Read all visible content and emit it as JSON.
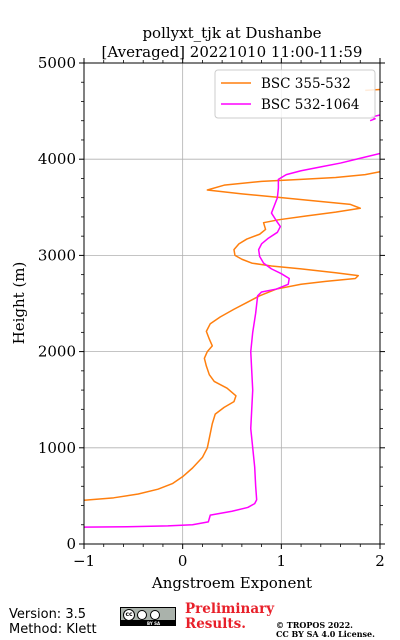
{
  "chart_data": {
    "type": "line",
    "title": [
      "pollyxt_tjk at Dushanbe",
      "[Averaged] 20221010 11:00-11:59"
    ],
    "xlabel": "Angstroem Exponent",
    "ylabel": "Height (m)",
    "xlim": [
      -1,
      2
    ],
    "ylim": [
      0,
      5000
    ],
    "xticks": [
      -1,
      0,
      1,
      2
    ],
    "yticks": [
      0,
      1000,
      2000,
      3000,
      4000,
      5000
    ],
    "grid": true,
    "legend_position": "top-right",
    "series": [
      {
        "name": "BSC 355-532",
        "color": "#ff7f0e",
        "points": [
          [
            -1.0,
            455
          ],
          [
            -0.7,
            480
          ],
          [
            -0.45,
            520
          ],
          [
            -0.25,
            570
          ],
          [
            -0.1,
            630
          ],
          [
            0.0,
            700
          ],
          [
            0.1,
            790
          ],
          [
            0.2,
            900
          ],
          [
            0.25,
            1000
          ],
          [
            0.27,
            1100
          ],
          [
            0.3,
            1250
          ],
          [
            0.33,
            1350
          ],
          [
            0.42,
            1420
          ],
          [
            0.52,
            1480
          ],
          [
            0.54,
            1540
          ],
          [
            0.45,
            1620
          ],
          [
            0.32,
            1690
          ],
          [
            0.27,
            1760
          ],
          [
            0.24,
            1850
          ],
          [
            0.22,
            1930
          ],
          [
            0.25,
            2000
          ],
          [
            0.3,
            2060
          ],
          [
            0.27,
            2130
          ],
          [
            0.24,
            2210
          ],
          [
            0.28,
            2290
          ],
          [
            0.38,
            2360
          ],
          [
            0.52,
            2440
          ],
          [
            0.65,
            2510
          ],
          [
            0.78,
            2580
          ],
          [
            0.95,
            2650
          ],
          [
            1.2,
            2700
          ],
          [
            1.45,
            2730
          ],
          [
            1.75,
            2760
          ],
          [
            1.78,
            2790
          ],
          [
            1.55,
            2820
          ],
          [
            1.2,
            2860
          ],
          [
            0.9,
            2890
          ],
          [
            0.7,
            2920
          ],
          [
            0.6,
            2960
          ],
          [
            0.53,
            3000
          ],
          [
            0.52,
            3060
          ],
          [
            0.57,
            3120
          ],
          [
            0.65,
            3170
          ],
          [
            0.78,
            3220
          ],
          [
            0.84,
            3270
          ],
          [
            0.82,
            3340
          ],
          [
            0.97,
            3370
          ],
          [
            1.25,
            3410
          ],
          [
            1.55,
            3450
          ],
          [
            1.8,
            3490
          ],
          [
            1.7,
            3530
          ],
          [
            1.4,
            3560
          ],
          [
            1.0,
            3600
          ],
          [
            0.6,
            3640
          ],
          [
            0.25,
            3680
          ],
          [
            0.42,
            3730
          ],
          [
            0.8,
            3770
          ],
          [
            1.2,
            3790
          ],
          [
            1.55,
            3810
          ],
          [
            1.85,
            3840
          ],
          [
            2.0,
            3870
          ]
        ]
      },
      {
        "name": "BSC 532-1064",
        "color": "#ff00ff",
        "points": [
          [
            -1.0,
            175
          ],
          [
            -0.5,
            180
          ],
          [
            -0.15,
            188
          ],
          [
            0.1,
            200
          ],
          [
            0.26,
            230
          ],
          [
            0.28,
            300
          ],
          [
            0.5,
            340
          ],
          [
            0.66,
            380
          ],
          [
            0.73,
            420
          ],
          [
            0.75,
            460
          ],
          [
            0.74,
            600
          ],
          [
            0.73,
            800
          ],
          [
            0.71,
            1000
          ],
          [
            0.69,
            1200
          ],
          [
            0.7,
            1400
          ],
          [
            0.71,
            1600
          ],
          [
            0.7,
            1800
          ],
          [
            0.69,
            2000
          ],
          [
            0.71,
            2200
          ],
          [
            0.74,
            2400
          ],
          [
            0.76,
            2580
          ],
          [
            0.8,
            2620
          ],
          [
            0.95,
            2650
          ],
          [
            1.07,
            2700
          ],
          [
            1.08,
            2760
          ],
          [
            1.0,
            2810
          ],
          [
            0.9,
            2860
          ],
          [
            0.82,
            2920
          ],
          [
            0.78,
            2990
          ],
          [
            0.77,
            3060
          ],
          [
            0.8,
            3120
          ],
          [
            0.87,
            3180
          ],
          [
            0.96,
            3240
          ],
          [
            0.99,
            3300
          ],
          [
            0.95,
            3360
          ],
          [
            0.9,
            3440
          ],
          [
            0.93,
            3520
          ],
          [
            0.96,
            3600
          ],
          [
            0.97,
            3700
          ],
          [
            0.97,
            3790
          ],
          [
            1.05,
            3840
          ],
          [
            1.2,
            3880
          ],
          [
            1.4,
            3920
          ],
          [
            1.6,
            3960
          ],
          [
            1.8,
            4010
          ],
          [
            2.0,
            4060
          ]
        ]
      },
      {
        "name": "BSC 355-532",
        "color": "#ff7f0e",
        "points": [
          [
            1.85,
            4715
          ],
          [
            2.0,
            4725
          ]
        ]
      },
      {
        "name": "BSC 532-1064",
        "color": "#ff00ff",
        "points": [
          [
            1.9,
            4400
          ],
          [
            1.95,
            4420
          ],
          [
            1.92,
            4440
          ],
          [
            2.0,
            4460
          ]
        ]
      }
    ]
  },
  "footer": {
    "version": "Version: 3.5",
    "method": "Method: Klett",
    "license_badge": "BY SA",
    "preliminary_line1": "Preliminary",
    "preliminary_line2": "Results.",
    "copyright_line1": "© TROPOS 2022.",
    "copyright_line2": "CC BY SA 4.0 License."
  }
}
